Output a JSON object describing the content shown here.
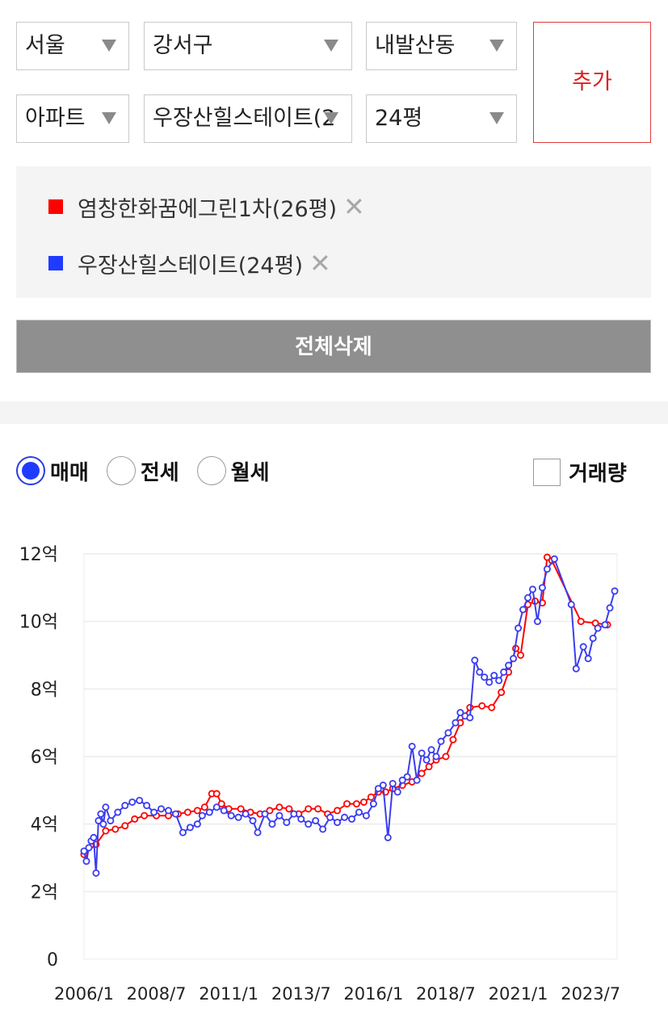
{
  "filters": {
    "city": "서울",
    "district": "강서구",
    "dong": "내발산동",
    "property_type": "아파트",
    "complex": "우장산힐스테이트(2",
    "size": "24평",
    "add_label": "추가"
  },
  "selected": {
    "items": [
      {
        "label": "염창한화꿈에그린1차(26평)",
        "color": "#ff0000"
      },
      {
        "label": "우장산힐스테이트(24평)",
        "color": "#1f3bff"
      }
    ],
    "remove_glyph": "✕",
    "delete_all_label": "전체삭제"
  },
  "options": {
    "radios": [
      {
        "label": "매매",
        "active": true
      },
      {
        "label": "전세",
        "active": false
      },
      {
        "label": "월세",
        "active": false
      }
    ],
    "volume_label": "거래량",
    "volume_checked": false
  },
  "chart_data": {
    "type": "line",
    "title": "",
    "xlabel": "",
    "ylabel": "",
    "x_tick_labels": [
      "2006/1",
      "2008/7",
      "2011/1",
      "2013/7",
      "2016/1",
      "2018/7",
      "2021/1",
      "2023/7"
    ],
    "y_tick_labels": [
      "0",
      "2억",
      "4억",
      "6억",
      "8억",
      "10억",
      "12억"
    ],
    "ylim": [
      0,
      12
    ],
    "y_unit": "억",
    "xlim": [
      "2006-01",
      "2024-06"
    ],
    "grid": true,
    "series": [
      {
        "color": "#ff0000",
        "points": [
          [
            "2006-01",
            3.1
          ],
          [
            "2006-06",
            3.4
          ],
          [
            "2006-10",
            3.8
          ],
          [
            "2007-02",
            3.85
          ],
          [
            "2007-06",
            3.95
          ],
          [
            "2007-10",
            4.15
          ],
          [
            "2008-02",
            4.25
          ],
          [
            "2008-07",
            4.25
          ],
          [
            "2008-12",
            4.25
          ],
          [
            "2009-04",
            4.3
          ],
          [
            "2009-08",
            4.35
          ],
          [
            "2009-12",
            4.4
          ],
          [
            "2010-03",
            4.5
          ],
          [
            "2010-06",
            4.9
          ],
          [
            "2010-08",
            4.9
          ],
          [
            "2010-10",
            4.6
          ],
          [
            "2011-01",
            4.45
          ],
          [
            "2011-06",
            4.45
          ],
          [
            "2011-10",
            4.35
          ],
          [
            "2012-02",
            4.3
          ],
          [
            "2012-06",
            4.4
          ],
          [
            "2012-10",
            4.5
          ],
          [
            "2013-02",
            4.45
          ],
          [
            "2013-06",
            4.3
          ],
          [
            "2013-10",
            4.45
          ],
          [
            "2014-02",
            4.45
          ],
          [
            "2014-06",
            4.3
          ],
          [
            "2014-10",
            4.4
          ],
          [
            "2015-02",
            4.6
          ],
          [
            "2015-06",
            4.6
          ],
          [
            "2015-09",
            4.65
          ],
          [
            "2015-12",
            4.8
          ],
          [
            "2016-03",
            4.95
          ],
          [
            "2016-06",
            4.95
          ],
          [
            "2016-09",
            5.05
          ],
          [
            "2017-01",
            5.15
          ],
          [
            "2017-05",
            5.25
          ],
          [
            "2017-09",
            5.5
          ],
          [
            "2017-12",
            5.7
          ],
          [
            "2018-03",
            5.9
          ],
          [
            "2018-07",
            6.0
          ],
          [
            "2018-10",
            6.5
          ],
          [
            "2019-01",
            7.0
          ],
          [
            "2019-05",
            7.45
          ],
          [
            "2019-10",
            7.5
          ],
          [
            "2020-02",
            7.45
          ],
          [
            "2020-06",
            7.9
          ],
          [
            "2020-09",
            8.5
          ],
          [
            "2020-12",
            9.2
          ],
          [
            "2021-02",
            9.0
          ],
          [
            "2021-05",
            10.5
          ],
          [
            "2021-08",
            10.6
          ],
          [
            "2021-11",
            10.55
          ],
          [
            "2022-01",
            11.9
          ],
          [
            "2022-03",
            11.8
          ],
          [
            "2023-03",
            10.0
          ],
          [
            "2023-09",
            9.95
          ],
          [
            "2024-02",
            9.9
          ]
        ]
      },
      {
        "color": "#3a3cf0",
        "points": [
          [
            "2006-01",
            3.2
          ],
          [
            "2006-02",
            2.9
          ],
          [
            "2006-03",
            3.3
          ],
          [
            "2006-04",
            3.5
          ],
          [
            "2006-05",
            3.6
          ],
          [
            "2006-06",
            2.55
          ],
          [
            "2006-07",
            4.1
          ],
          [
            "2006-08",
            4.3
          ],
          [
            "2006-09",
            4.0
          ],
          [
            "2006-10",
            4.5
          ],
          [
            "2006-12",
            4.1
          ],
          [
            "2007-03",
            4.35
          ],
          [
            "2007-06",
            4.55
          ],
          [
            "2007-09",
            4.65
          ],
          [
            "2007-12",
            4.7
          ],
          [
            "2008-03",
            4.55
          ],
          [
            "2008-06",
            4.35
          ],
          [
            "2008-09",
            4.45
          ],
          [
            "2008-12",
            4.4
          ],
          [
            "2009-03",
            4.3
          ],
          [
            "2009-06",
            3.75
          ],
          [
            "2009-09",
            3.9
          ],
          [
            "2009-12",
            4.0
          ],
          [
            "2010-02",
            4.25
          ],
          [
            "2010-05",
            4.35
          ],
          [
            "2010-08",
            4.5
          ],
          [
            "2010-11",
            4.4
          ],
          [
            "2011-02",
            4.25
          ],
          [
            "2011-05",
            4.2
          ],
          [
            "2011-08",
            4.3
          ],
          [
            "2011-11",
            4.1
          ],
          [
            "2012-01",
            3.75
          ],
          [
            "2012-04",
            4.3
          ],
          [
            "2012-07",
            4.0
          ],
          [
            "2012-10",
            4.25
          ],
          [
            "2013-01",
            4.05
          ],
          [
            "2013-04",
            4.3
          ],
          [
            "2013-07",
            4.15
          ],
          [
            "2013-10",
            4.0
          ],
          [
            "2014-01",
            4.1
          ],
          [
            "2014-04",
            3.85
          ],
          [
            "2014-07",
            4.2
          ],
          [
            "2014-10",
            4.05
          ],
          [
            "2015-01",
            4.2
          ],
          [
            "2015-04",
            4.15
          ],
          [
            "2015-07",
            4.35
          ],
          [
            "2015-10",
            4.25
          ],
          [
            "2016-01",
            4.6
          ],
          [
            "2016-03",
            5.05
          ],
          [
            "2016-05",
            5.15
          ],
          [
            "2016-07",
            3.6
          ],
          [
            "2016-09",
            5.2
          ],
          [
            "2016-11",
            4.95
          ],
          [
            "2017-01",
            5.3
          ],
          [
            "2017-03",
            5.4
          ],
          [
            "2017-05",
            6.3
          ],
          [
            "2017-07",
            5.3
          ],
          [
            "2017-09",
            6.1
          ],
          [
            "2017-11",
            5.9
          ],
          [
            "2018-01",
            6.2
          ],
          [
            "2018-03",
            6.0
          ],
          [
            "2018-05",
            6.45
          ],
          [
            "2018-08",
            6.7
          ],
          [
            "2018-11",
            7.0
          ],
          [
            "2019-01",
            7.3
          ],
          [
            "2019-03",
            7.2
          ],
          [
            "2019-05",
            7.15
          ],
          [
            "2019-07",
            8.85
          ],
          [
            "2019-09",
            8.5
          ],
          [
            "2019-11",
            8.35
          ],
          [
            "2020-01",
            8.2
          ],
          [
            "2020-03",
            8.4
          ],
          [
            "2020-05",
            8.25
          ],
          [
            "2020-07",
            8.5
          ],
          [
            "2020-09",
            8.7
          ],
          [
            "2020-11",
            8.9
          ],
          [
            "2021-01",
            9.8
          ],
          [
            "2021-03",
            10.35
          ],
          [
            "2021-05",
            10.7
          ],
          [
            "2021-07",
            10.95
          ],
          [
            "2021-09",
            10.0
          ],
          [
            "2021-11",
            11.0
          ],
          [
            "2022-01",
            11.55
          ],
          [
            "2022-04",
            11.85
          ],
          [
            "2022-11",
            10.5
          ],
          [
            "2023-01",
            8.6
          ],
          [
            "2023-04",
            9.25
          ],
          [
            "2023-06",
            8.9
          ],
          [
            "2023-08",
            9.5
          ],
          [
            "2023-10",
            9.8
          ],
          [
            "2024-01",
            9.9
          ],
          [
            "2024-03",
            10.4
          ],
          [
            "2024-05",
            10.9
          ]
        ]
      }
    ]
  }
}
